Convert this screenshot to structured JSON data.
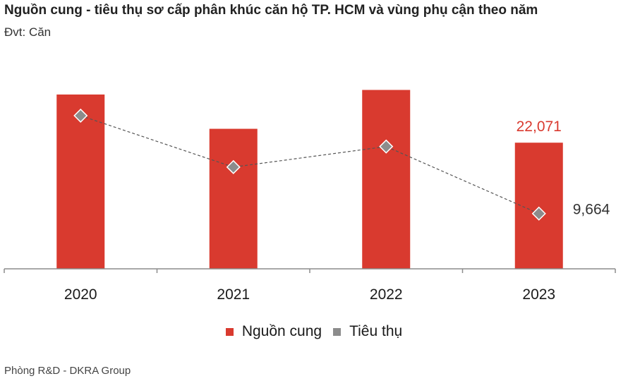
{
  "title": "Nguồn cung - tiêu thụ sơ cấp phân khúc căn hộ TP. HCM và vùng phụ cận theo năm",
  "unit_label": "Đvt: Căn",
  "source": "Phòng R&D - DKRA Group",
  "colors": {
    "supply": "#d93a2f",
    "consumption_marker": "#8c8c8c",
    "line": "#555555",
    "axis": "#8c8c8c",
    "supply_label": "#d93a2f",
    "consumption_label": "#333333"
  },
  "chart_data": {
    "type": "bar",
    "categories": [
      "2020",
      "2021",
      "2022",
      "2023"
    ],
    "ylim": [
      0,
      30000
    ],
    "grid": false,
    "legend_position": "bottom",
    "series": [
      {
        "name": "Nguồn cung",
        "type": "bar",
        "values": [
          30500,
          24500,
          31300,
          22071
        ],
        "labels": [
          "",
          "",
          "",
          "22,071"
        ]
      },
      {
        "name": "Tiêu thụ",
        "type": "line",
        "values": [
          26800,
          17800,
          21400,
          9664
        ],
        "labels": [
          "",
          "",
          "",
          "9,664"
        ]
      }
    ]
  }
}
